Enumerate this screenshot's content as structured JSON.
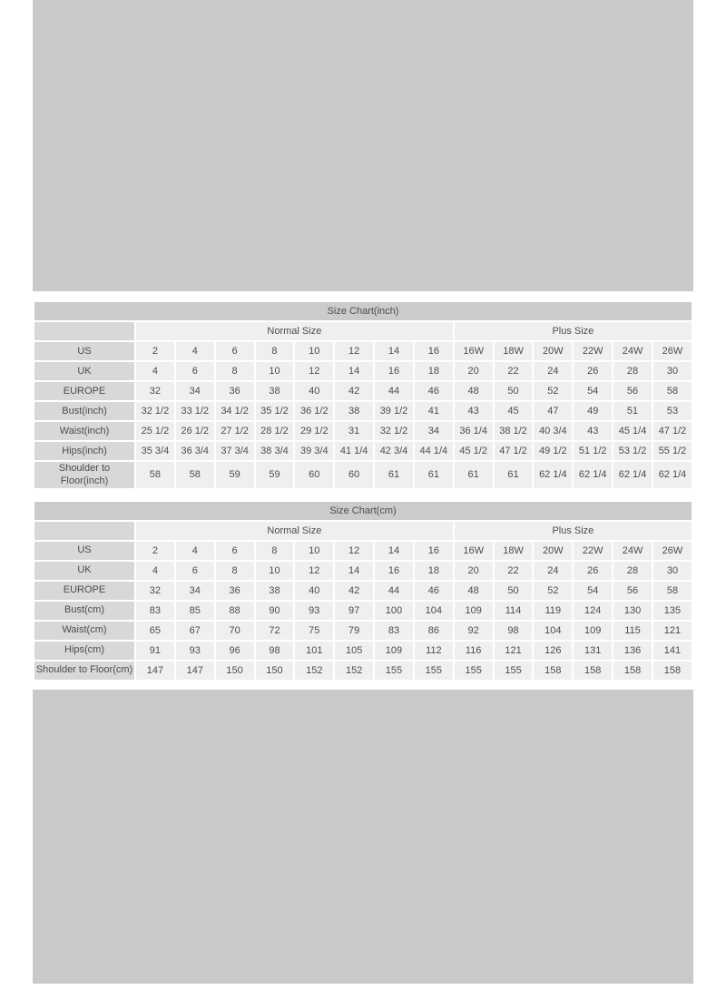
{
  "colors": {
    "page_background": "#ffffff",
    "placeholder_band": "#c9c9c9",
    "title_bar": "#cbcbcb",
    "label_cell": "#d8d8d8",
    "value_cell": "#f0efee",
    "text": "#4c4c4c"
  },
  "chart_data": [
    {
      "type": "table",
      "title": "Size Chart(inch)",
      "column_groups": [
        {
          "label": "Normal Size",
          "span": 8
        },
        {
          "label": "Plus Size",
          "span": 6
        }
      ],
      "rows": [
        {
          "label": "US",
          "values": [
            "2",
            "4",
            "6",
            "8",
            "10",
            "12",
            "14",
            "16",
            "16W",
            "18W",
            "20W",
            "22W",
            "24W",
            "26W"
          ]
        },
        {
          "label": "UK",
          "values": [
            "4",
            "6",
            "8",
            "10",
            "12",
            "14",
            "16",
            "18",
            "20",
            "22",
            "24",
            "26",
            "28",
            "30"
          ]
        },
        {
          "label": "EUROPE",
          "values": [
            "32",
            "34",
            "36",
            "38",
            "40",
            "42",
            "44",
            "46",
            "48",
            "50",
            "52",
            "54",
            "56",
            "58"
          ]
        },
        {
          "label": "Bust(inch)",
          "values": [
            "32 1/2",
            "33 1/2",
            "34 1/2",
            "35 1/2",
            "36 1/2",
            "38",
            "39 1/2",
            "41",
            "43",
            "45",
            "47",
            "49",
            "51",
            "53"
          ]
        },
        {
          "label": "Waist(inch)",
          "values": [
            "25 1/2",
            "26 1/2",
            "27 1/2",
            "28 1/2",
            "29 1/2",
            "31",
            "32 1/2",
            "34",
            "36 1/4",
            "38 1/2",
            "40 3/4",
            "43",
            "45 1/4",
            "47 1/2"
          ]
        },
        {
          "label": "Hips(inch)",
          "values": [
            "35 3/4",
            "36 3/4",
            "37 3/4",
            "38 3/4",
            "39 3/4",
            "41 1/4",
            "42 3/4",
            "44 1/4",
            "45 1/2",
            "47 1/2",
            "49 1/2",
            "51 1/2",
            "53 1/2",
            "55 1/2"
          ]
        },
        {
          "label": "Shoulder to Floor(inch)",
          "values": [
            "58",
            "58",
            "59",
            "59",
            "60",
            "60",
            "61",
            "61",
            "61",
            "61",
            "62 1/4",
            "62 1/4",
            "62 1/4",
            "62 1/4"
          ]
        }
      ]
    },
    {
      "type": "table",
      "title": "Size Chart(cm)",
      "column_groups": [
        {
          "label": "Normal Size",
          "span": 8
        },
        {
          "label": "Plus Size",
          "span": 6
        }
      ],
      "rows": [
        {
          "label": "US",
          "values": [
            "2",
            "4",
            "6",
            "8",
            "10",
            "12",
            "14",
            "16",
            "16W",
            "18W",
            "20W",
            "22W",
            "24W",
            "26W"
          ]
        },
        {
          "label": "UK",
          "values": [
            "4",
            "6",
            "8",
            "10",
            "12",
            "14",
            "16",
            "18",
            "20",
            "22",
            "24",
            "26",
            "28",
            "30"
          ]
        },
        {
          "label": "EUROPE",
          "values": [
            "32",
            "34",
            "36",
            "38",
            "40",
            "42",
            "44",
            "46",
            "48",
            "50",
            "52",
            "54",
            "56",
            "58"
          ]
        },
        {
          "label": "Bust(cm)",
          "values": [
            "83",
            "85",
            "88",
            "90",
            "93",
            "97",
            "100",
            "104",
            "109",
            "114",
            "119",
            "124",
            "130",
            "135"
          ]
        },
        {
          "label": "Waist(cm)",
          "values": [
            "65",
            "67",
            "70",
            "72",
            "75",
            "79",
            "83",
            "86",
            "92",
            "98",
            "104",
            "109",
            "115",
            "121"
          ]
        },
        {
          "label": "Hips(cm)",
          "values": [
            "91",
            "93",
            "96",
            "98",
            "101",
            "105",
            "109",
            "112",
            "116",
            "121",
            "126",
            "131",
            "136",
            "141"
          ]
        },
        {
          "label": "Shoulder to Floor(cm)",
          "values": [
            "147",
            "147",
            "150",
            "150",
            "152",
            "152",
            "155",
            "155",
            "155",
            "155",
            "158",
            "158",
            "158",
            "158"
          ]
        }
      ]
    }
  ]
}
